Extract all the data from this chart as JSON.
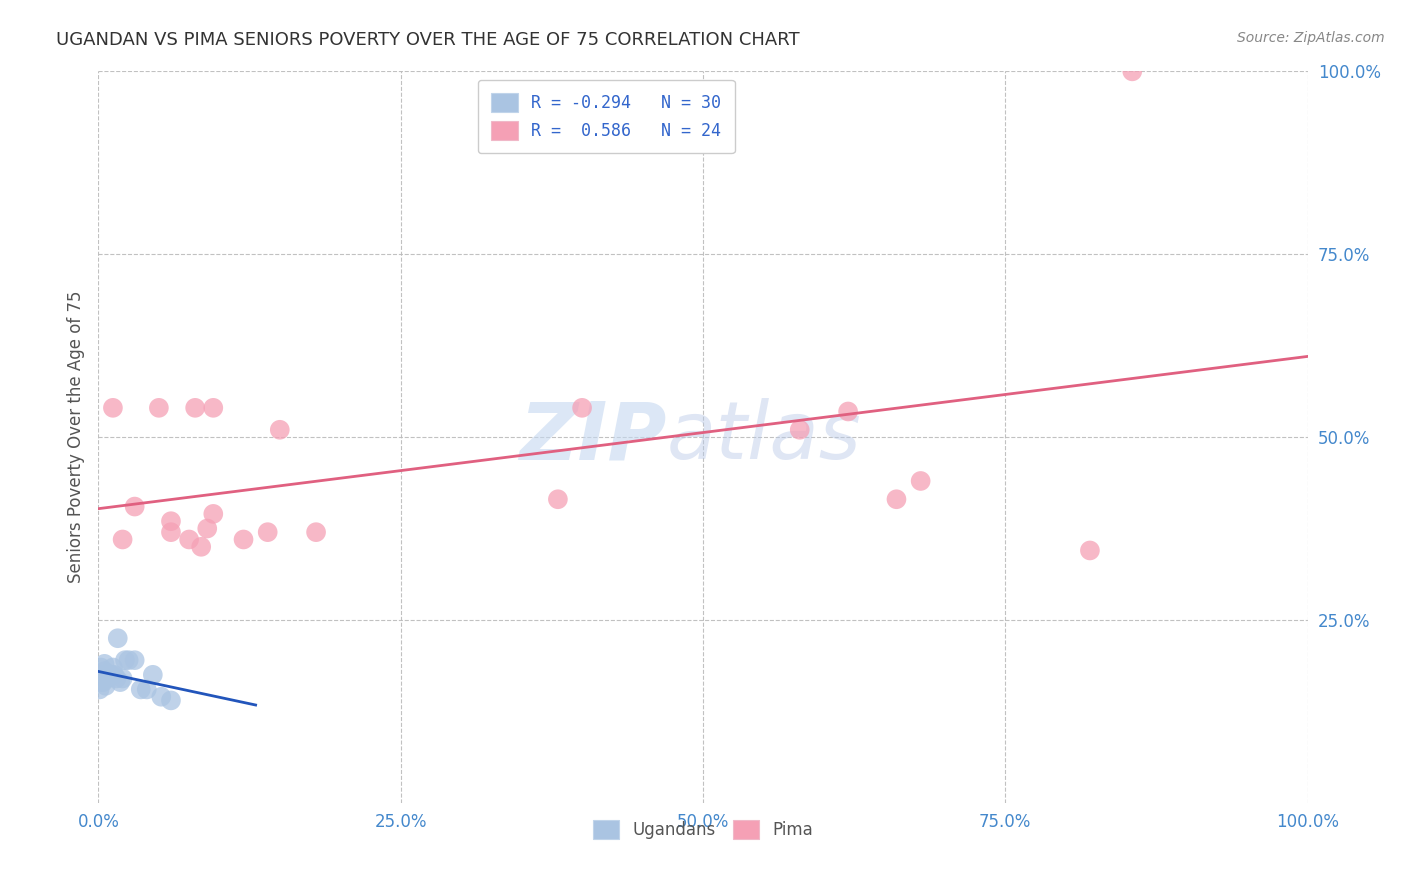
{
  "title": "UGANDAN VS PIMA SENIORS POVERTY OVER THE AGE OF 75 CORRELATION CHART",
  "source_text": "Source: ZipAtlas.com",
  "ylabel": "Seniors Poverty Over the Age of 75",
  "xlim": [
    0,
    1.0
  ],
  "ylim": [
    0,
    1.0
  ],
  "xtick_vals": [
    0.0,
    0.25,
    0.5,
    0.75,
    1.0
  ],
  "xtick_labels": [
    "0.0%",
    "25.0%",
    "50.0%",
    "75.0%",
    "100.0%"
  ],
  "ytick_vals": [
    0.25,
    0.5,
    0.75,
    1.0
  ],
  "ytick_labels": [
    "25.0%",
    "50.0%",
    "75.0%",
    "100.0%"
  ],
  "ugandan_color": "#aac4e2",
  "pima_color": "#f5a0b5",
  "ugandan_line_color": "#2255bb",
  "pima_line_color": "#e06080",
  "legend_ugandan_label": "R = -0.294   N = 30",
  "legend_pima_label": "R =  0.586   N = 24",
  "watermark_line1": "ZIP",
  "watermark_line2": "atlas",
  "background_color": "#ffffff",
  "grid_color": "#bbbbbb",
  "title_color": "#333333",
  "axis_tick_color": "#4488cc",
  "ylabel_color": "#555555",
  "ugandan_x": [
    0.001,
    0.002,
    0.002,
    0.003,
    0.003,
    0.004,
    0.004,
    0.005,
    0.005,
    0.006,
    0.006,
    0.007,
    0.008,
    0.009,
    0.01,
    0.011,
    0.012,
    0.013,
    0.015,
    0.016,
    0.018,
    0.02,
    0.022,
    0.025,
    0.03,
    0.035,
    0.04,
    0.045,
    0.052,
    0.06
  ],
  "ugandan_y": [
    0.155,
    0.175,
    0.185,
    0.165,
    0.175,
    0.165,
    0.175,
    0.18,
    0.19,
    0.16,
    0.175,
    0.17,
    0.175,
    0.175,
    0.175,
    0.175,
    0.185,
    0.175,
    0.17,
    0.225,
    0.165,
    0.17,
    0.195,
    0.195,
    0.195,
    0.155,
    0.155,
    0.175,
    0.145,
    0.14
  ],
  "pima_x": [
    0.012,
    0.02,
    0.03,
    0.05,
    0.06,
    0.06,
    0.075,
    0.08,
    0.085,
    0.09,
    0.095,
    0.095,
    0.12,
    0.14,
    0.15,
    0.18,
    0.38,
    0.4,
    0.58,
    0.62,
    0.66,
    0.68,
    0.82,
    0.855
  ],
  "pima_y": [
    0.54,
    0.36,
    0.405,
    0.54,
    0.37,
    0.385,
    0.36,
    0.54,
    0.35,
    0.375,
    0.395,
    0.54,
    0.36,
    0.37,
    0.51,
    0.37,
    0.415,
    0.54,
    0.51,
    0.535,
    0.415,
    0.44,
    0.345,
    1.0
  ],
  "ugandan_line_x": [
    0.0,
    0.13
  ],
  "pima_line_x": [
    0.0,
    1.0
  ]
}
